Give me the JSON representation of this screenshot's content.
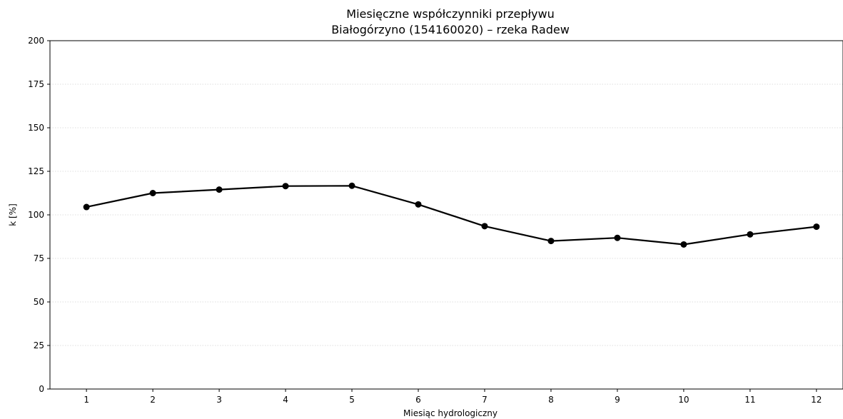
{
  "chart_data": {
    "type": "line",
    "title": "Miesięczne współczynniki przepływu",
    "subtitle": "Białogórzyno (154160020) – rzeka Radew",
    "xlabel": "Miesiąc hydrologiczny",
    "ylabel": "k [%]",
    "x": [
      1,
      2,
      3,
      4,
      5,
      6,
      7,
      8,
      9,
      10,
      11,
      12
    ],
    "x_tick_labels": [
      "1",
      "2",
      "3",
      "4",
      "5",
      "6",
      "7",
      "8",
      "9",
      "10",
      "11",
      "12"
    ],
    "series": [
      {
        "values": [
          104.5,
          112.5,
          114.5,
          116.5,
          116.7,
          106.0,
          93.5,
          85.0,
          86.8,
          83.0,
          88.8,
          93.2
        ],
        "color": "#000000",
        "marker": "circle"
      }
    ],
    "ylim": [
      0,
      200
    ],
    "xlim": [
      0.45,
      12.4
    ],
    "y_ticks": [
      0,
      25,
      50,
      75,
      100,
      125,
      150,
      175,
      200
    ],
    "y_tick_labels": [
      "0",
      "25",
      "50",
      "75",
      "100",
      "125",
      "150",
      "175",
      "200"
    ],
    "grid": "horizontal-dotted",
    "legend": "none"
  }
}
